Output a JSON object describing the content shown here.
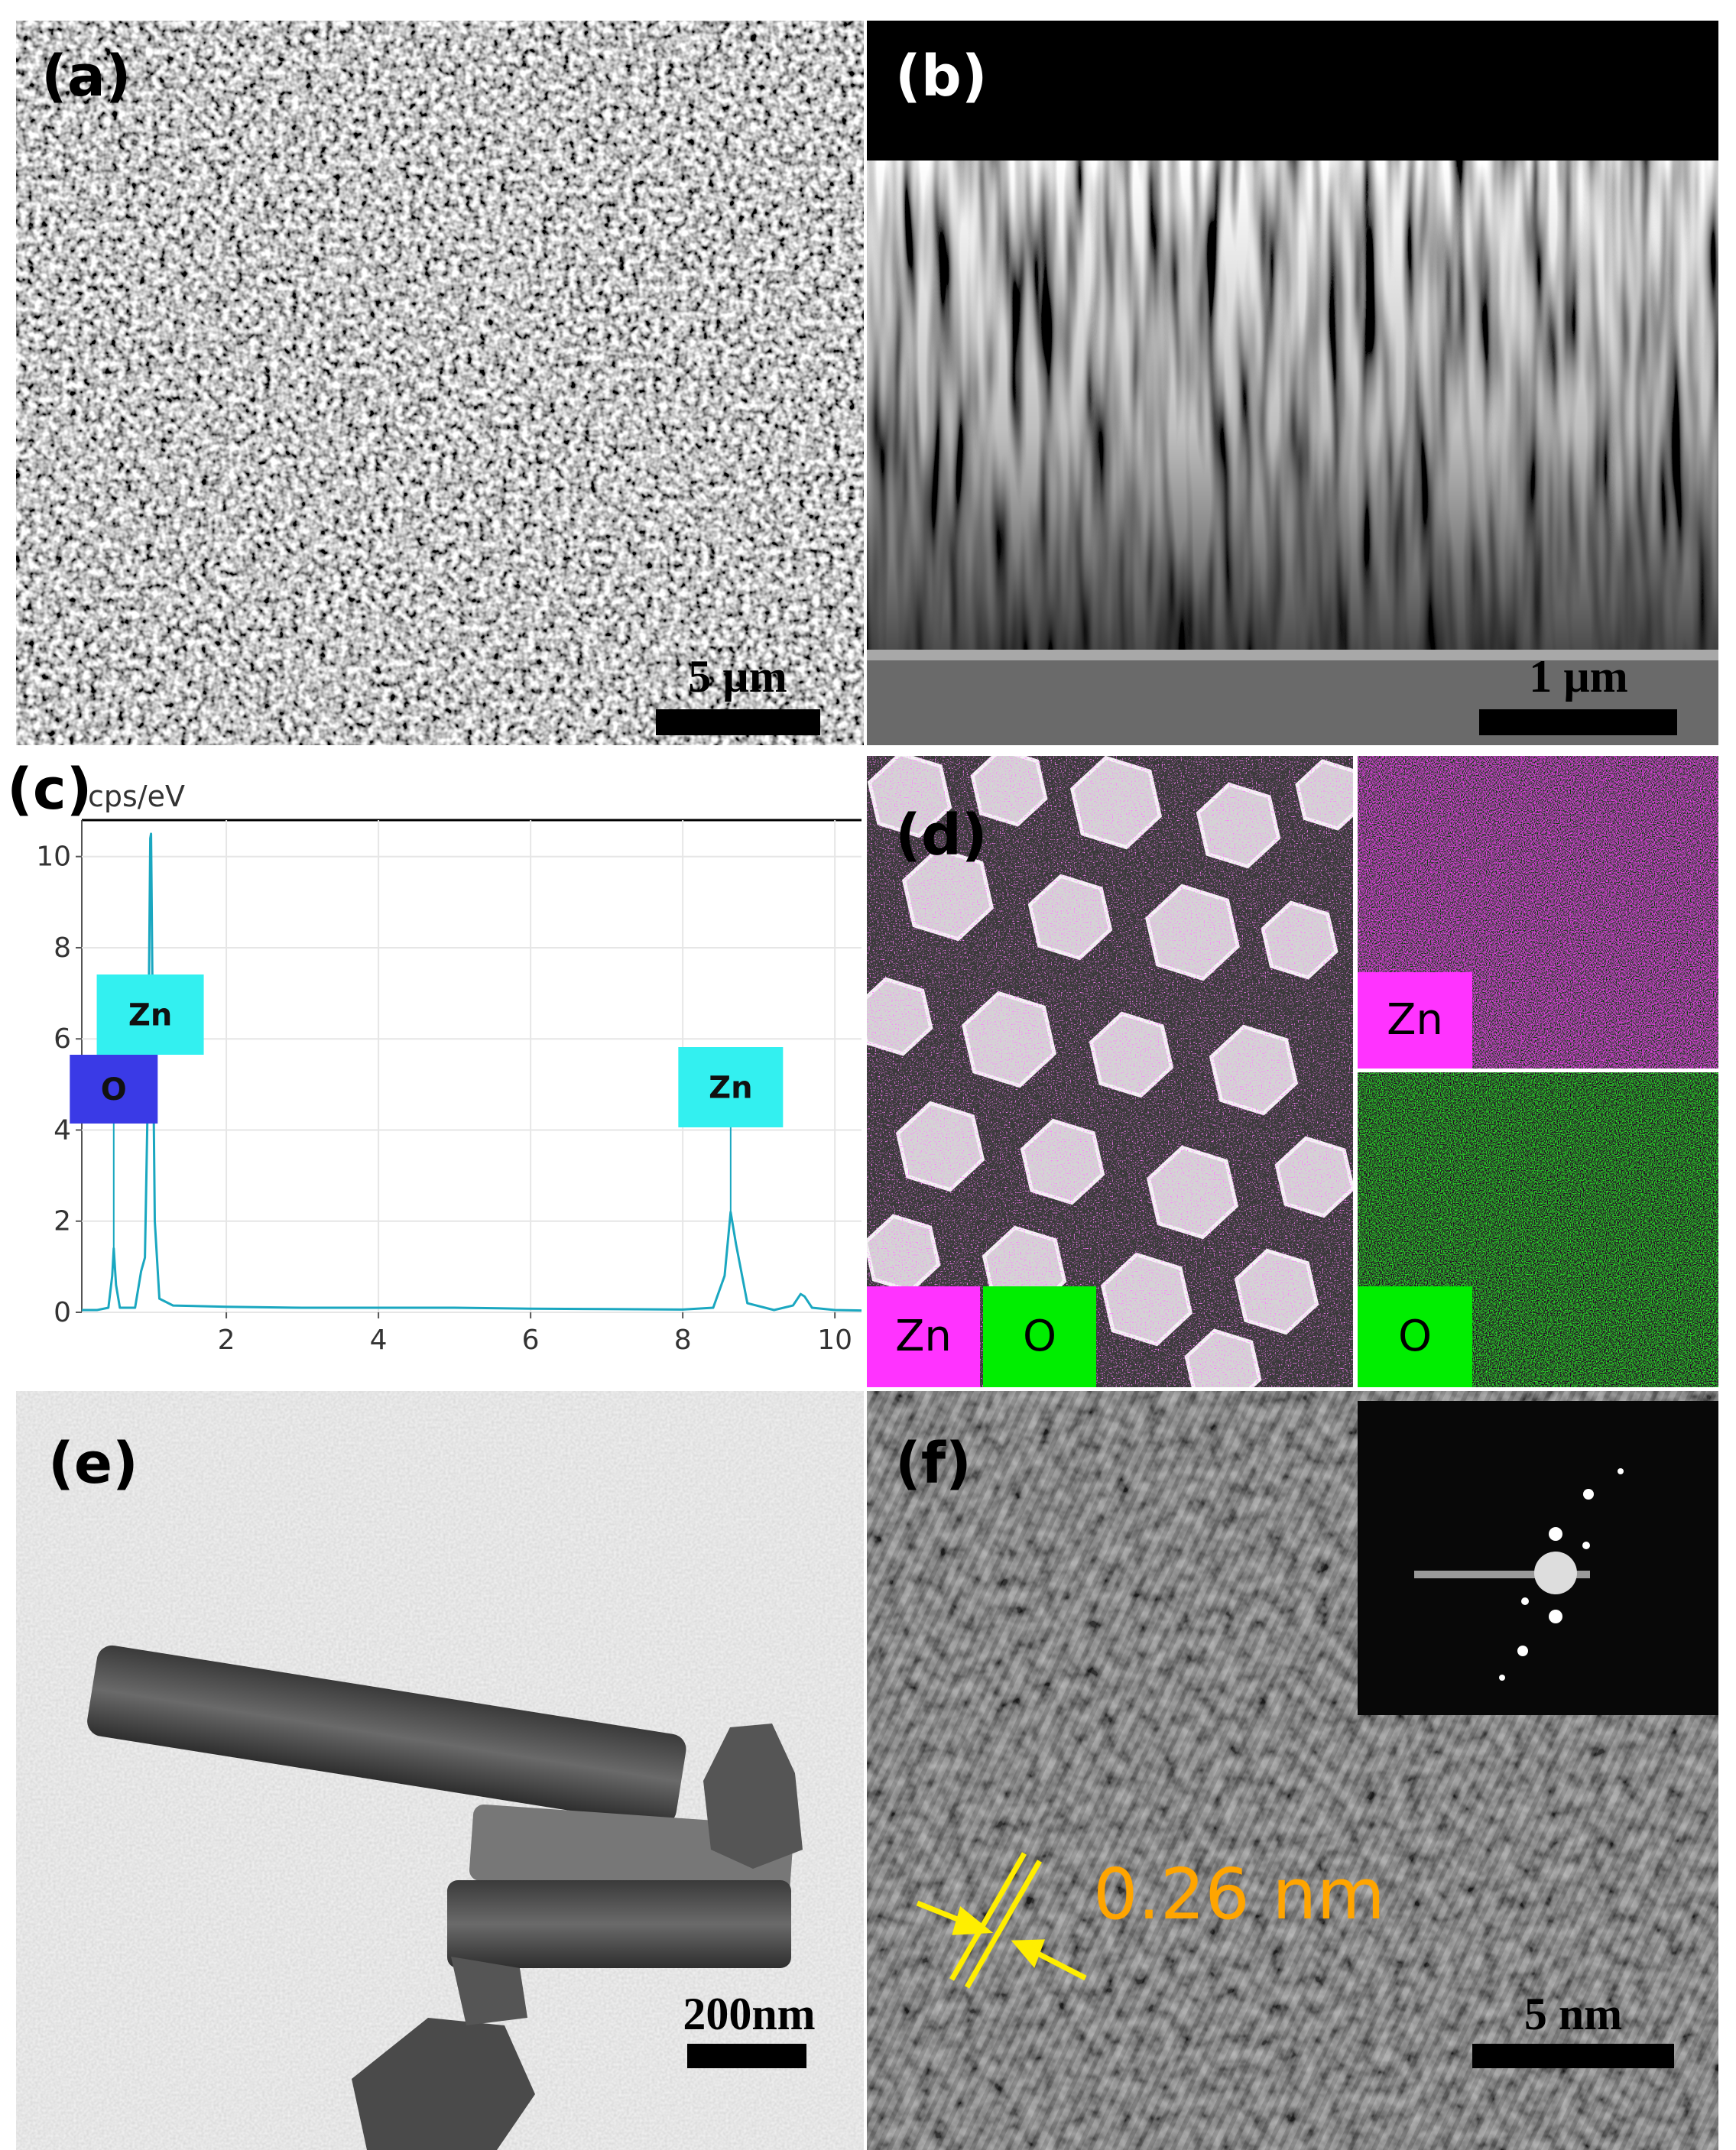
{
  "panels": [
    {
      "label": "(a)",
      "scale_bar": "5 µm"
    },
    {
      "label": "(b)",
      "scale_bar": "1 µm"
    },
    {
      "label": "(c)"
    },
    {
      "label": "(d)",
      "overlay_labels": [
        "Zn",
        "O"
      ],
      "map_labels": [
        "Zn",
        "O"
      ]
    },
    {
      "label": "(e)",
      "scale_bar": "200nm"
    },
    {
      "label": "(f)",
      "scale_bar": "5 nm",
      "annotation": "0.26 nm"
    }
  ],
  "chart_data": {
    "type": "line",
    "y_label": "cps/eV",
    "color": "#1aa7c0",
    "grid": true,
    "x": [
      0.1,
      0.3,
      0.45,
      0.5,
      0.52,
      0.55,
      0.6,
      0.8,
      0.88,
      0.93,
      0.97,
      1.0,
      1.01,
      1.03,
      1.06,
      1.12,
      1.3,
      2,
      3,
      4,
      5,
      6,
      7,
      8,
      8.4,
      8.55,
      8.63,
      8.7,
      8.85,
      9.2,
      9.45,
      9.55,
      9.6,
      9.7,
      10.0,
      10.35
    ],
    "values": [
      0.05,
      0.05,
      0.1,
      0.8,
      1.4,
      0.6,
      0.1,
      0.1,
      0.9,
      1.2,
      5,
      10.4,
      10.5,
      7,
      2,
      0.3,
      0.15,
      0.12,
      0.1,
      0.1,
      0.1,
      0.08,
      0.07,
      0.06,
      0.1,
      0.8,
      2.2,
      1.5,
      0.2,
      0.05,
      0.15,
      0.4,
      0.35,
      0.1,
      0.05,
      0.04
    ],
    "xlim": [
      0.1,
      10.35
    ],
    "ylim": [
      0,
      10.8
    ],
    "xticks": [
      2,
      4,
      6,
      8,
      10
    ],
    "yticks": [
      0,
      2,
      4,
      6,
      8,
      10
    ],
    "annotations": [
      {
        "text": "Zn",
        "x": 1.0,
        "color": "#33f0f0"
      },
      {
        "text": "O",
        "x": 0.52,
        "color": "#3a3ae6"
      },
      {
        "text": "Zn",
        "x": 8.63,
        "color": "#33f0f0"
      }
    ]
  }
}
